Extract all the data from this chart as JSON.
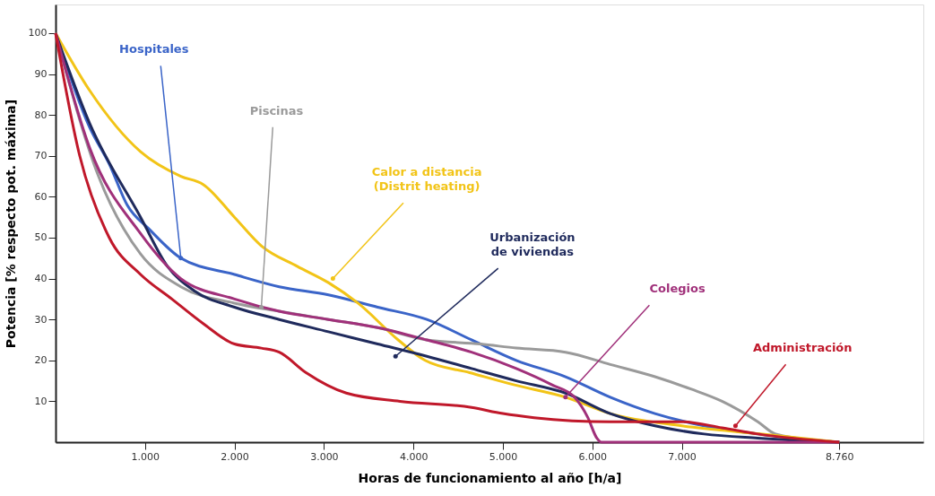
{
  "chart_data": {
    "type": "line",
    "xlabel": "Horas de funcionamiento al año [h/a]",
    "ylabel": "Potencia  [% respecto pot. máxima]",
    "xlim": [
      0,
      9700
    ],
    "ylim": [
      0,
      107
    ],
    "xticks": [
      {
        "value": 1000,
        "label": "1.000"
      },
      {
        "value": 2000,
        "label": "2.000"
      },
      {
        "value": 3000,
        "label": "3.000"
      },
      {
        "value": 4000,
        "label": "4.000"
      },
      {
        "value": 5000,
        "label": "5.000"
      },
      {
        "value": 6000,
        "label": "6.000"
      },
      {
        "value": 7000,
        "label": "7.000"
      },
      {
        "value": 8760,
        "label": "8.760"
      }
    ],
    "yticks": [
      10,
      20,
      30,
      40,
      50,
      60,
      70,
      80,
      90,
      100
    ],
    "grid": false,
    "legend": false,
    "marker": "none",
    "line_style": "solid",
    "series": [
      {
        "name": "Hospitales",
        "color": "#3a64c8",
        "x": [
          0,
          380,
          600,
          800,
          1050,
          1400,
          2000,
          2500,
          3050,
          3600,
          4150,
          4650,
          5150,
          5700,
          6200,
          6700,
          7250,
          7850,
          8760
        ],
        "values": [
          100,
          77,
          68,
          58,
          52,
          45,
          41,
          38,
          36,
          33,
          30,
          25,
          20,
          16,
          11,
          7,
          4,
          2,
          0
        ]
      },
      {
        "name": "Piscinas",
        "color": "#9a9a9a",
        "x": [
          0,
          480,
          950,
          1400,
          2000,
          2500,
          3050,
          3600,
          4150,
          4750,
          5150,
          5700,
          6200,
          6700,
          7100,
          7450,
          7850,
          8050,
          8760
        ],
        "values": [
          100,
          65,
          46,
          38,
          34,
          32,
          30,
          28,
          25,
          24,
          23,
          22,
          19,
          16,
          13,
          10,
          5,
          2,
          0
        ]
      },
      {
        "name": "Calor a distancia\n(Distrit heating)",
        "color": "#f2c417",
        "x": [
          0,
          380,
          950,
          1400,
          1650,
          2000,
          2300,
          2700,
          3050,
          3380,
          3830,
          4130,
          4630,
          5130,
          5700,
          6200,
          7000,
          7900,
          8760
        ],
        "values": [
          100,
          86,
          71,
          65,
          63,
          55,
          48,
          43,
          39,
          34,
          25,
          20,
          17,
          14,
          11,
          7,
          4,
          2,
          0
        ]
      },
      {
        "name": "Urbanización\nde viviendas",
        "color": "#1f2a5c",
        "x": [
          0,
          380,
          950,
          1250,
          1550,
          2000,
          2500,
          3050,
          3600,
          4150,
          4650,
          5150,
          5700,
          6200,
          6700,
          7250,
          7850,
          8760
        ],
        "values": [
          100,
          78,
          55,
          43,
          37,
          33,
          30,
          27,
          24,
          21,
          18,
          15,
          12,
          7,
          4,
          2,
          1,
          0
        ]
      },
      {
        "name": "Colegios",
        "color": "#a0307a",
        "x": [
          0,
          380,
          950,
          1400,
          2000,
          2500,
          3050,
          3600,
          4150,
          4650,
          5150,
          5550,
          5800,
          5950,
          6050,
          6100,
          8760
        ],
        "values": [
          100,
          72,
          51,
          40,
          35,
          32,
          30,
          28,
          25,
          22,
          18,
          14,
          11,
          6,
          1,
          0,
          0
        ]
      },
      {
        "name": "Administración",
        "color": "#c0182a",
        "x": [
          0,
          270,
          600,
          950,
          1300,
          1650,
          2000,
          2300,
          2500,
          2800,
          3250,
          3850,
          4650,
          5000,
          5350,
          6200,
          7000,
          7450,
          7850,
          8760
        ],
        "values": [
          100,
          70,
          50,
          41,
          35,
          29,
          24,
          23,
          22,
          17,
          12,
          10,
          8.5,
          7,
          6,
          5,
          5,
          3.5,
          2,
          0
        ]
      }
    ]
  }
}
